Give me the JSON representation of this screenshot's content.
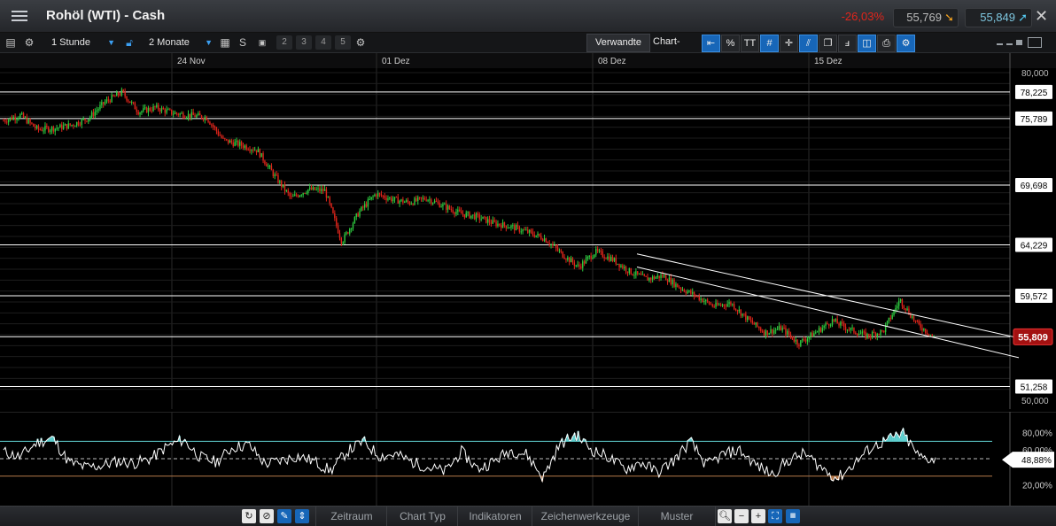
{
  "header": {
    "title": "Rohöl (WTI) - Cash",
    "change_pct": "-26,03%",
    "bid": "55,769",
    "ask": "55,849",
    "close_icon": "close-icon",
    "menu_icon": "menu-icon"
  },
  "toolbar": {
    "interval": "1 Stunde",
    "range": "2 Monate",
    "s_label": "S",
    "nums": [
      "1",
      "2",
      "3",
      "4",
      "5"
    ],
    "related_label": "Verwandte",
    "chart_tools_label": "Chart-Tools",
    "tools": [
      "collapse-arrow-icon",
      "percent-icon",
      "text-icon",
      "grid-icon",
      "crosshair-icon",
      "candlestick-icon",
      "multi-window-icon",
      "indicator-icon",
      "comment-icon",
      "print-icon",
      "settings-icon"
    ],
    "tool_labels": {
      "percent": "%",
      "text": "TT"
    }
  },
  "colors": {
    "background": "#000000",
    "up": "#2ecc40",
    "down": "#e0251b",
    "line": "#ffffff",
    "rsi_fill_over": "#5fcfcf",
    "rsi_fill_under": "#b4784a",
    "last_price_badge": "#a31111",
    "accent": "#3b9ff2"
  },
  "chart_data": [
    {
      "type": "line",
      "subtype": "candlestick",
      "dates": [
        "24 Nov",
        "01 Dez",
        "08 Dez",
        "15 Dez"
      ],
      "y_ticks": [
        "80,000",
        "50,000"
      ],
      "ylim": [
        50.0,
        80.0
      ],
      "horizontal_levels": [
        {
          "value": 78.225,
          "label": "78,225"
        },
        {
          "value": 75.789,
          "label": "75,789"
        },
        {
          "value": 69.698,
          "label": "69,698"
        },
        {
          "value": 64.229,
          "label": "64,229"
        },
        {
          "value": 59.572,
          "label": "59,572"
        },
        {
          "value": 55.82,
          "label": "55,820"
        },
        {
          "value": 51.258,
          "label": "51,258"
        }
      ],
      "last_price": {
        "value": 55.809,
        "label": "55,809"
      },
      "close_series": [
        75.6,
        76.1,
        74.8,
        74.9,
        75.2,
        75.8,
        77.3,
        78.2,
        76.4,
        76.8,
        76.3,
        76.1,
        75.9,
        73.8,
        73.4,
        72.9,
        70.6,
        68.5,
        69.3,
        69.2,
        64.5,
        67.2,
        68.9,
        68.4,
        68.1,
        68.5,
        67.8,
        67.1,
        66.8,
        66.2,
        65.9,
        65.4,
        64.8,
        63.4,
        62.2,
        63.6,
        62.9,
        61.8,
        61.1,
        61.4,
        60.3,
        59.5,
        58.6,
        58.9,
        57.4,
        56.2,
        56.6,
        55.2,
        56.2,
        57.3,
        56.5,
        55.9,
        56.3,
        59.2,
        57.0,
        55.8
      ],
      "trend_lines": [
        {
          "from": [
            62.2,
            "08 Dez"
          ],
          "to": [
            53.9,
            "end"
          ]
        },
        {
          "from": [
            63.4,
            "08 Dez"
          ],
          "to": [
            55.7,
            "end"
          ]
        }
      ]
    },
    {
      "type": "area",
      "name": "RSI",
      "y_ticks": [
        "80,00%",
        "60,00%",
        "20,00%"
      ],
      "ylim": [
        0,
        100
      ],
      "current": "48,88%",
      "levels": [
        70,
        50,
        30
      ],
      "values": [
        58,
        52,
        68,
        74,
        46,
        40,
        42,
        47,
        45,
        50,
        64,
        72,
        52,
        46,
        63,
        66,
        44,
        48,
        53,
        47,
        36,
        58,
        70,
        53,
        55,
        46,
        40,
        35,
        58,
        38,
        47,
        60,
        55,
        28,
        66,
        78,
        60,
        52,
        38,
        46,
        34,
        48,
        70,
        42,
        55,
        60,
        43,
        32,
        48,
        56,
        40,
        27,
        44,
        62,
        71,
        79,
        52,
        49
      ]
    }
  ],
  "bottom": {
    "tabs": [
      "Zeitraum",
      "Chart Typ",
      "Indikatoren",
      "Zeichenwerkzeuge",
      "Muster"
    ],
    "icons_left": [
      "refresh-icon",
      "cancel-icon",
      "edit-icon",
      "scroll-icon"
    ],
    "icons_right": [
      "zoom-icon",
      "zoom-out-icon",
      "zoom-in-icon",
      "fit-icon",
      "calendar-icon"
    ]
  }
}
